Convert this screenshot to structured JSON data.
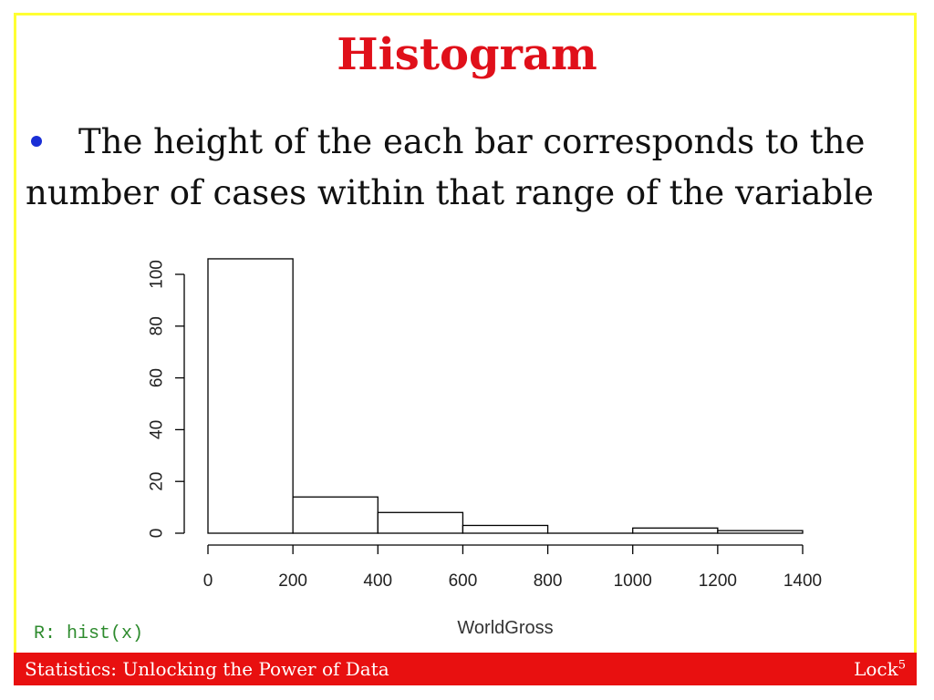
{
  "slide": {
    "title": "Histogram",
    "bullet_text": "The height of the each bar corresponds to the number of cases within that range of the variable",
    "code_label": "R: hist(x)",
    "footer_left": "Statistics: Unlocking the Power of Data",
    "footer_right": "Lock",
    "footer_right_sup": "5"
  },
  "colors": {
    "title": "#e0101a",
    "bullet": "#1a2fd6",
    "frame": "#ffff33",
    "footer_bg": "#e81010",
    "code": "#2e8b2e"
  },
  "chart_data": {
    "type": "bar",
    "subtype": "histogram",
    "bins": [
      {
        "from": 0,
        "to": 200,
        "count": 106
      },
      {
        "from": 200,
        "to": 400,
        "count": 14
      },
      {
        "from": 400,
        "to": 600,
        "count": 8
      },
      {
        "from": 600,
        "to": 800,
        "count": 3
      },
      {
        "from": 800,
        "to": 1000,
        "count": 0
      },
      {
        "from": 1000,
        "to": 1200,
        "count": 2
      },
      {
        "from": 1200,
        "to": 1400,
        "count": 1
      }
    ],
    "xlabel": "WorldGross",
    "ylabel": "",
    "xticks": [
      0,
      200,
      400,
      600,
      800,
      1000,
      1200,
      1400
    ],
    "yticks": [
      0,
      20,
      40,
      60,
      80,
      100
    ],
    "xlim": [
      0,
      1400
    ],
    "ylim": [
      0,
      100
    ],
    "grid": false
  }
}
